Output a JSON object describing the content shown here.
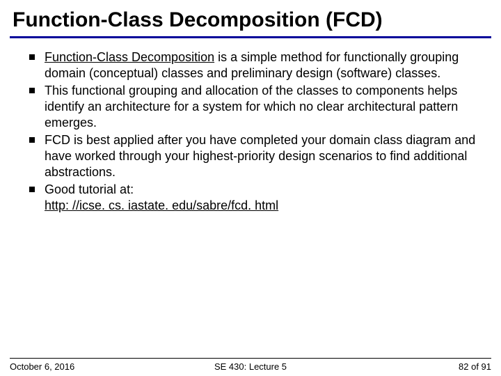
{
  "title": "Function-Class Decomposition (FCD)",
  "title_color": "#000000",
  "title_fontsize": 30,
  "underline_color": "#000099",
  "underline_height": 3,
  "body_fontsize": 18,
  "body_color": "#000000",
  "bullet_marker_color": "#000000",
  "bullets": [
    {
      "strong_underlined": "Function-Class Decomposition",
      "rest": " is a simple method for functionally grouping domain (conceptual) classes and preliminary design (software) classes."
    },
    {
      "text": "This functional grouping and allocation of the classes to components helps identify an architecture for a system for which no clear architectural pattern emerges."
    },
    {
      "text": "FCD is best applied after you have completed your domain class diagram and have worked through your highest-priority design scenarios to find additional abstractions."
    },
    {
      "text": "Good tutorial at:",
      "link": "http: //icse. cs. iastate. edu/sabre/fcd. html"
    }
  ],
  "footer": {
    "left": "October 6, 2016",
    "center": "SE 430: Lecture 5",
    "right": "82 of 91",
    "fontsize": 13,
    "line_color": "#000000"
  },
  "background_color": "#ffffff"
}
